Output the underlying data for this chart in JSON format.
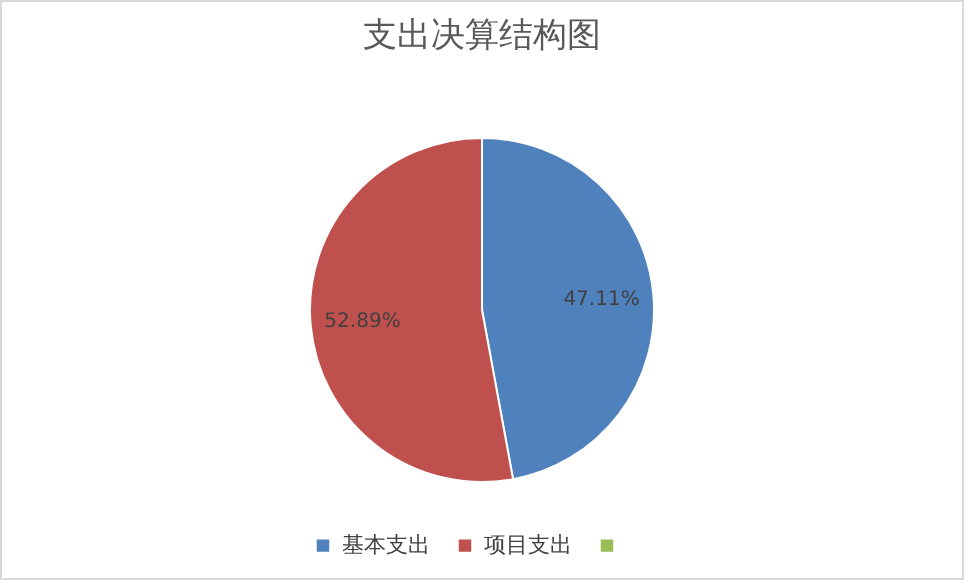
{
  "chart_data": {
    "type": "pie",
    "title": "支出决算结构图",
    "categories": [
      "基本支出",
      "项目支出",
      null
    ],
    "values": [
      47.11,
      52.89,
      0
    ],
    "colors": [
      "#4f81bd",
      "#c0504d",
      "#9bbb59"
    ],
    "value_labels": [
      "47.11%",
      "52.89%",
      null
    ],
    "legend": "bottom"
  }
}
